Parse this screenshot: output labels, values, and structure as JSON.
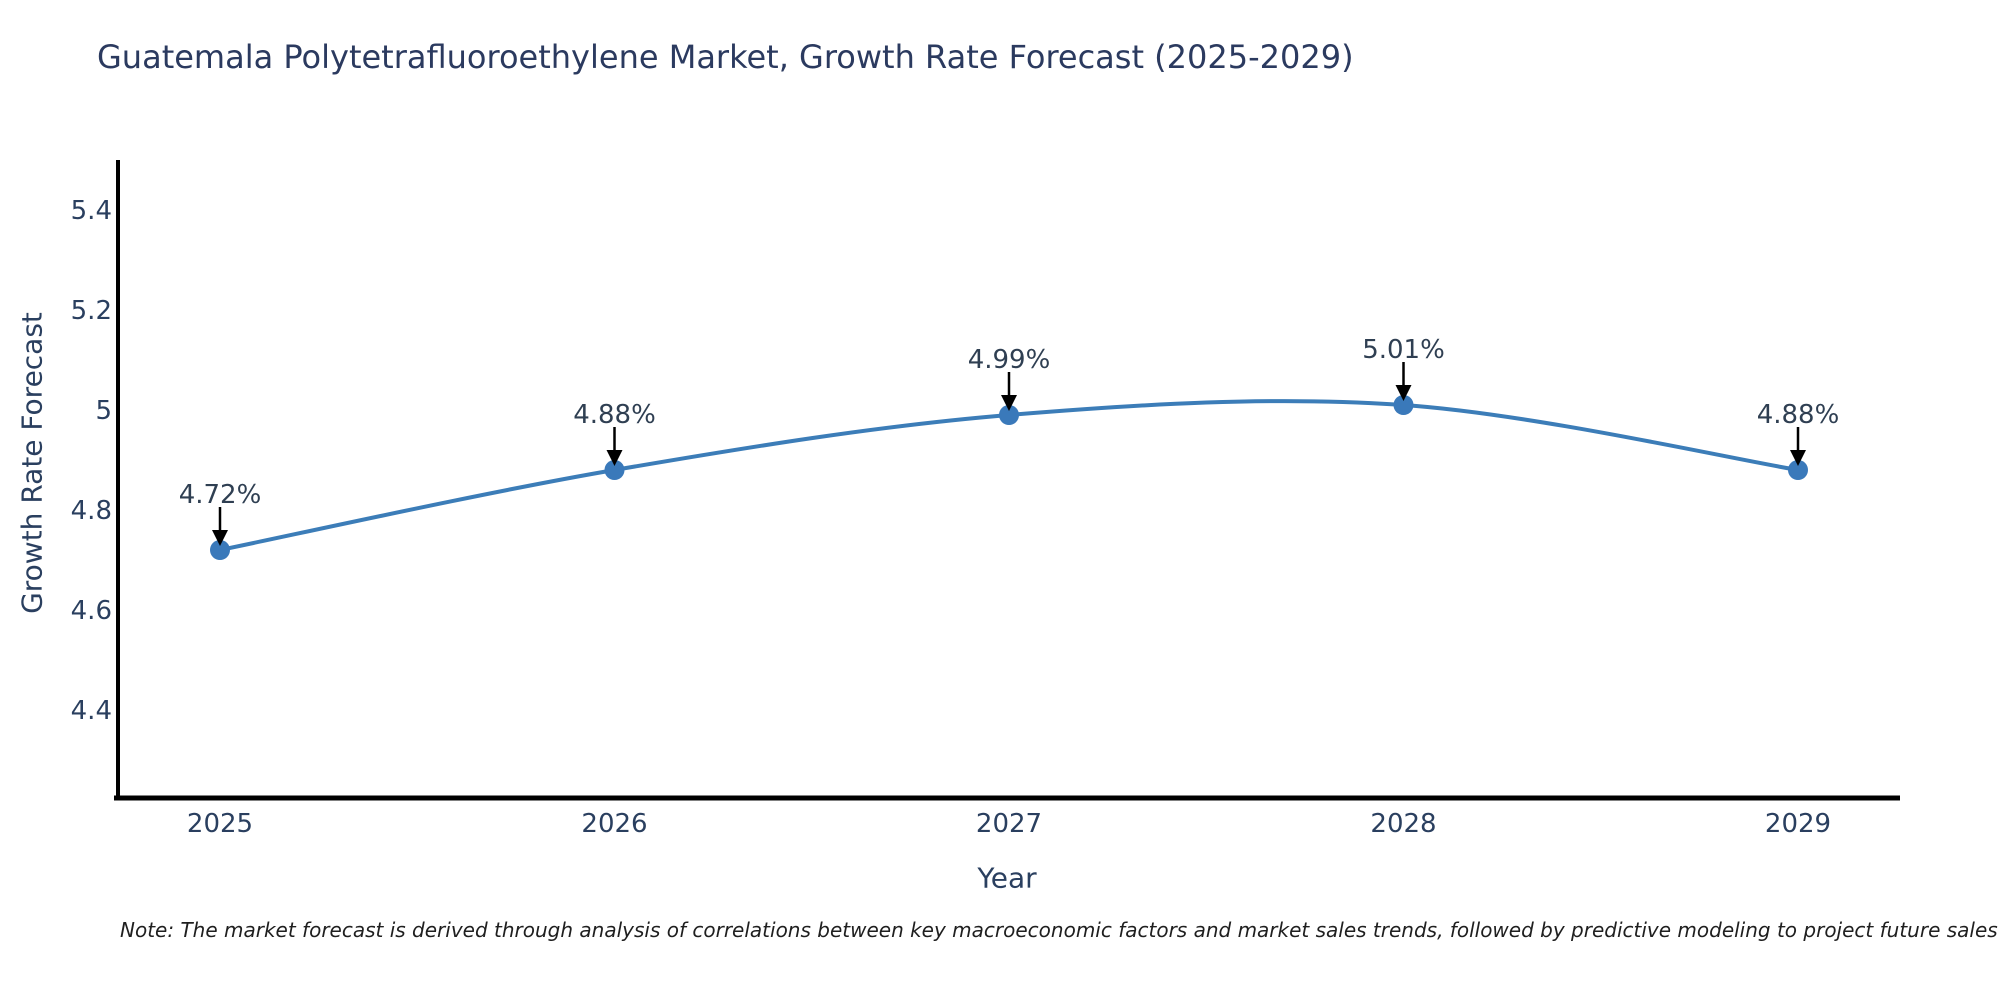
{
  "chart_data": {
    "type": "line",
    "title": "Guatemala Polytetrafluoroethylene Market, Growth Rate Forecast (2025-2029)",
    "x": [
      2025,
      2026,
      2027,
      2028,
      2029
    ],
    "xtick_labels": [
      "2025",
      "2026",
      "2027",
      "2028",
      "2029"
    ],
    "series": [
      {
        "name": "Growth Rate Forecast",
        "values": [
          4.72,
          4.88,
          4.99,
          5.01,
          4.88
        ],
        "point_labels": [
          "4.72%",
          "4.88%",
          "4.99%",
          "5.01%",
          "4.88%"
        ]
      }
    ],
    "xlabel": "Year",
    "ylabel": "Growth Rate Forecast",
    "yticks": [
      5.4,
      5.2,
      5,
      4.8,
      4.6,
      4.4
    ],
    "ytick_labels": [
      "5.4",
      "5.2",
      "5",
      "4.8",
      "4.6",
      "4.4"
    ],
    "ylim": [
      4.22,
      5.5
    ],
    "grid": false,
    "legend": "none",
    "line_shape": "spline",
    "annotations": "each point labeled with its percentage value and a black down-arrow",
    "colors": {
      "line": "#3c7db8",
      "marker": "#3a79ba",
      "axis": "#000000",
      "tick_text": "#2a3f5f",
      "annotation_text": "#2f3f52",
      "title_text": "#2b3a5f"
    }
  },
  "footer": {
    "note": "Note: The market forecast is derived through analysis of correlations between key macroeconomic factors and market sales trends, followed by predictive modeling to project future sales"
  }
}
